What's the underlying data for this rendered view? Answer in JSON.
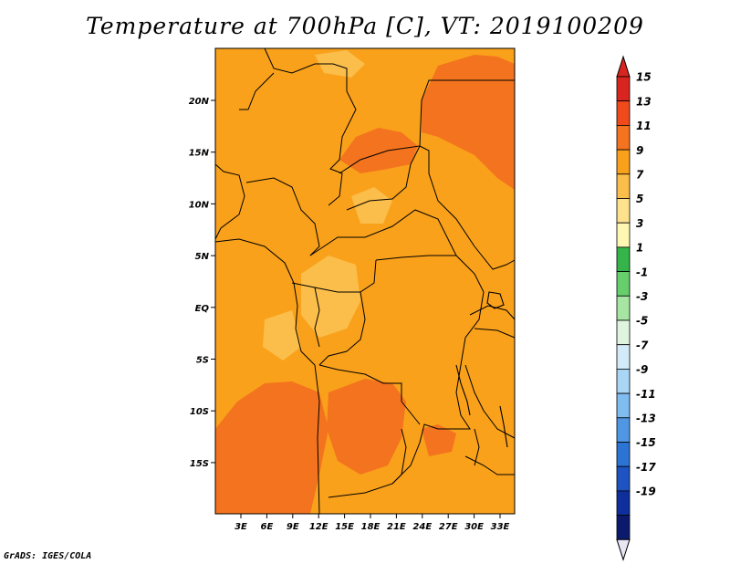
{
  "title": "Temperature at 700hPa [C], VT: 2019100209",
  "credit": "GrADS: IGES/COLA",
  "map": {
    "lat_labels": [
      "20N",
      "15N",
      "10N",
      "5N",
      "EQ",
      "5S",
      "10S",
      "15S"
    ],
    "lon_labels": [
      "3E",
      "6E",
      "9E",
      "12E",
      "15E",
      "18E",
      "21E",
      "24E",
      "27E",
      "30E",
      "33E"
    ],
    "colors": {
      "base": "#f9a11b",
      "warm": "#f4731e",
      "mild": "#fbbe4a",
      "border": "#000000"
    }
  },
  "colorbar": {
    "labels": [
      "15",
      "13",
      "11",
      "9",
      "7",
      "5",
      "3",
      "1",
      "-1",
      "-3",
      "-5",
      "-7",
      "-9",
      "-11",
      "-13",
      "-15",
      "-17",
      "-19"
    ],
    "colors": [
      "#d9251f",
      "#f04a1c",
      "#f4731e",
      "#f9a11b",
      "#fbbe4a",
      "#fde18c",
      "#fdf7b2",
      "#35b549",
      "#66ce6b",
      "#a7e6a2",
      "#dff4de",
      "#d3ebf9",
      "#a9d6f5",
      "#7fbcef",
      "#4f97e3",
      "#2c73d6",
      "#1d54c1",
      "#0e2f9c",
      "#0b1a6c"
    ],
    "top_tip_color": "#d9251f",
    "bottom_tip_color": "#e6e6f5"
  }
}
